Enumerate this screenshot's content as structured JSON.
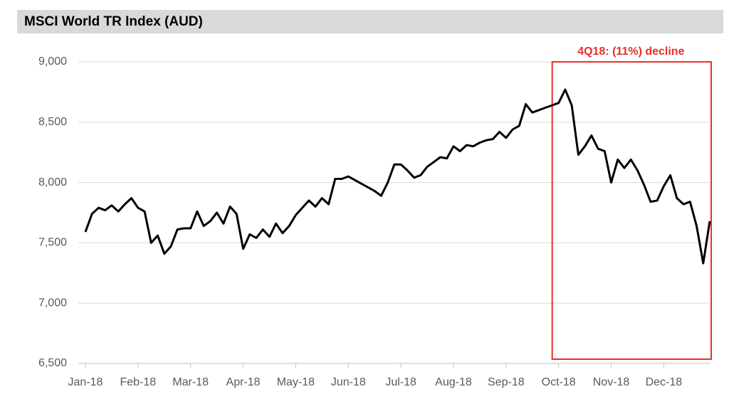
{
  "chart_data": {
    "type": "line",
    "title": "MSCI World TR Index (AUD)",
    "annotation": "4Q18: (11%) decline",
    "categories": [
      "Jan-18",
      null,
      null,
      null,
      null,
      null,
      null,
      null,
      "Feb-18",
      null,
      null,
      null,
      null,
      null,
      null,
      null,
      "Mar-18",
      null,
      null,
      null,
      null,
      null,
      null,
      null,
      "Apr-18",
      null,
      null,
      null,
      null,
      null,
      null,
      null,
      "May-18",
      null,
      null,
      null,
      null,
      null,
      null,
      null,
      "Jun-18",
      null,
      null,
      null,
      null,
      null,
      null,
      null,
      "Jul-18",
      null,
      null,
      null,
      null,
      null,
      null,
      null,
      "Aug-18",
      null,
      null,
      null,
      null,
      null,
      null,
      null,
      "Sep-18",
      null,
      null,
      null,
      null,
      null,
      null,
      null,
      "Oct-18",
      null,
      null,
      null,
      null,
      null,
      null,
      null,
      "Nov-18",
      null,
      null,
      null,
      null,
      null,
      null,
      null,
      "Dec-18",
      null,
      null,
      null,
      null,
      null,
      null,
      null
    ],
    "values": [
      7590,
      7740,
      7790,
      7770,
      7810,
      7760,
      7820,
      7870,
      7790,
      7760,
      7500,
      7560,
      7410,
      7470,
      7610,
      7620,
      7620,
      7760,
      7640,
      7680,
      7750,
      7660,
      7800,
      7740,
      7450,
      7570,
      7540,
      7610,
      7550,
      7660,
      7580,
      7640,
      7730,
      7790,
      7850,
      7800,
      7870,
      7820,
      8030,
      8030,
      8050,
      8020,
      7990,
      7960,
      7930,
      7890,
      8000,
      8150,
      8150,
      8100,
      8040,
      8060,
      8130,
      8170,
      8210,
      8200,
      8300,
      8260,
      8310,
      8300,
      8330,
      8350,
      8360,
      8420,
      8370,
      8440,
      8470,
      8650,
      8580,
      8600,
      8620,
      8640,
      8660,
      8770,
      8640,
      8230,
      8300,
      8390,
      8280,
      8260,
      8000,
      8190,
      8120,
      8190,
      8100,
      7980,
      7840,
      7850,
      7970,
      8060,
      7870,
      7820,
      7840,
      7640,
      7330,
      7680
    ],
    "color": "#000000",
    "ylim": [
      6500,
      9000
    ],
    "yticks": [
      {
        "value": 6500,
        "label": "6,500"
      },
      {
        "value": 7000,
        "label": "7,000"
      },
      {
        "value": 7500,
        "label": "7,500"
      },
      {
        "value": 8000,
        "label": "8,000"
      },
      {
        "value": 8500,
        "label": "8,500"
      },
      {
        "value": 9000,
        "label": "9,000"
      }
    ],
    "grid": true,
    "highlight_from": "Oct-18",
    "highlight_color": "#e8302a"
  }
}
